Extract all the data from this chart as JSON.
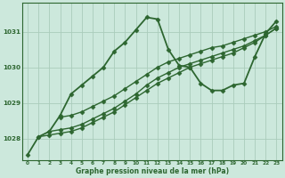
{
  "background_color": "#cce8dc",
  "grid_color": "#aaccbb",
  "line_color": "#2d6630",
  "xlabel": "Graphe pression niveau de la mer (hPa)",
  "ylim": [
    1027.4,
    1031.8
  ],
  "xlim": [
    -0.5,
    23.5
  ],
  "yticks": [
    1028,
    1029,
    1030,
    1031
  ],
  "xticks": [
    0,
    1,
    2,
    3,
    4,
    5,
    6,
    7,
    8,
    9,
    10,
    11,
    12,
    13,
    14,
    15,
    16,
    17,
    18,
    19,
    20,
    21,
    22,
    23
  ],
  "series": [
    {
      "x": [
        0,
        1,
        2,
        3,
        4,
        5,
        6,
        7,
        8,
        9,
        10,
        11,
        12,
        13,
        14,
        15,
        16,
        17,
        18,
        19,
        20,
        21,
        22,
        23
      ],
      "y": [
        1027.55,
        1028.05,
        1028.2,
        1028.65,
        1029.25,
        1029.5,
        1029.75,
        1030.0,
        1030.45,
        1030.7,
        1031.05,
        1031.4,
        1031.35,
        1030.5,
        1030.05,
        1030.0,
        1029.55,
        1029.35,
        1029.35,
        1029.5,
        1029.55,
        1030.3,
        1030.95,
        1031.3
      ],
      "lw": 1.3,
      "marker": "D",
      "ms": 2.5
    },
    {
      "x": [
        1,
        2,
        3,
        4,
        5,
        6,
        7,
        8,
        9,
        10,
        11,
        12,
        13,
        14,
        15,
        16,
        17,
        18,
        19,
        20,
        21,
        22,
        23
      ],
      "y": [
        1028.05,
        1028.1,
        1028.15,
        1028.2,
        1028.3,
        1028.45,
        1028.6,
        1028.75,
        1028.95,
        1029.15,
        1029.35,
        1029.55,
        1029.7,
        1029.85,
        1030.0,
        1030.1,
        1030.2,
        1030.3,
        1030.4,
        1030.55,
        1030.7,
        1030.9,
        1031.1
      ],
      "lw": 1.0,
      "marker": "D",
      "ms": 2.5
    },
    {
      "x": [
        2,
        3,
        4,
        5,
        6,
        7,
        8,
        9,
        10,
        11,
        12,
        13,
        14,
        15,
        16,
        17,
        18,
        19,
        20,
        21,
        22,
        23
      ],
      "y": [
        1028.2,
        1028.25,
        1028.3,
        1028.4,
        1028.55,
        1028.7,
        1028.85,
        1029.05,
        1029.25,
        1029.5,
        1029.7,
        1029.85,
        1030.0,
        1030.1,
        1030.2,
        1030.3,
        1030.4,
        1030.5,
        1030.6,
        1030.75,
        1030.9,
        1031.1
      ],
      "lw": 1.0,
      "marker": "D",
      "ms": 2.5
    },
    {
      "x": [
        3,
        4,
        5,
        6,
        7,
        8,
        9,
        10,
        11,
        12,
        13,
        14,
        15,
        16,
        17,
        18,
        19,
        20,
        21,
        22,
        23
      ],
      "y": [
        1028.6,
        1028.65,
        1028.75,
        1028.9,
        1029.05,
        1029.2,
        1029.4,
        1029.6,
        1029.8,
        1030.0,
        1030.15,
        1030.25,
        1030.35,
        1030.45,
        1030.55,
        1030.6,
        1030.7,
        1030.8,
        1030.9,
        1031.0,
        1031.15
      ],
      "lw": 1.0,
      "marker": "D",
      "ms": 2.5
    }
  ]
}
